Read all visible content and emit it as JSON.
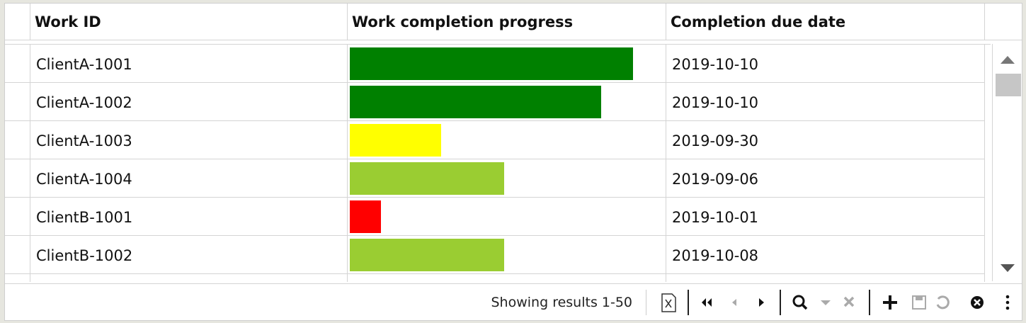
{
  "table": {
    "columns": [
      "Work ID",
      "Work completion progress",
      "Completion due date"
    ],
    "progress_range": [
      0,
      100
    ],
    "rows": [
      {
        "work_id": "ClientA-1001",
        "progress": 90,
        "color": "#008000",
        "due_date": "2019-10-10"
      },
      {
        "work_id": "ClientA-1002",
        "progress": 80,
        "color": "#008000",
        "due_date": "2019-10-10"
      },
      {
        "work_id": "ClientA-1003",
        "progress": 29,
        "color": "#ffff00",
        "due_date": "2019-09-30"
      },
      {
        "work_id": "ClientA-1004",
        "progress": 49,
        "color": "#9acd32",
        "due_date": "2019-09-06"
      },
      {
        "work_id": "ClientB-1001",
        "progress": 10,
        "color": "#ff0000",
        "due_date": "2019-10-01"
      },
      {
        "work_id": "ClientB-1002",
        "progress": 49,
        "color": "#9acd32",
        "due_date": "2019-10-08"
      }
    ]
  },
  "footer": {
    "status": "Showing results 1-50"
  }
}
